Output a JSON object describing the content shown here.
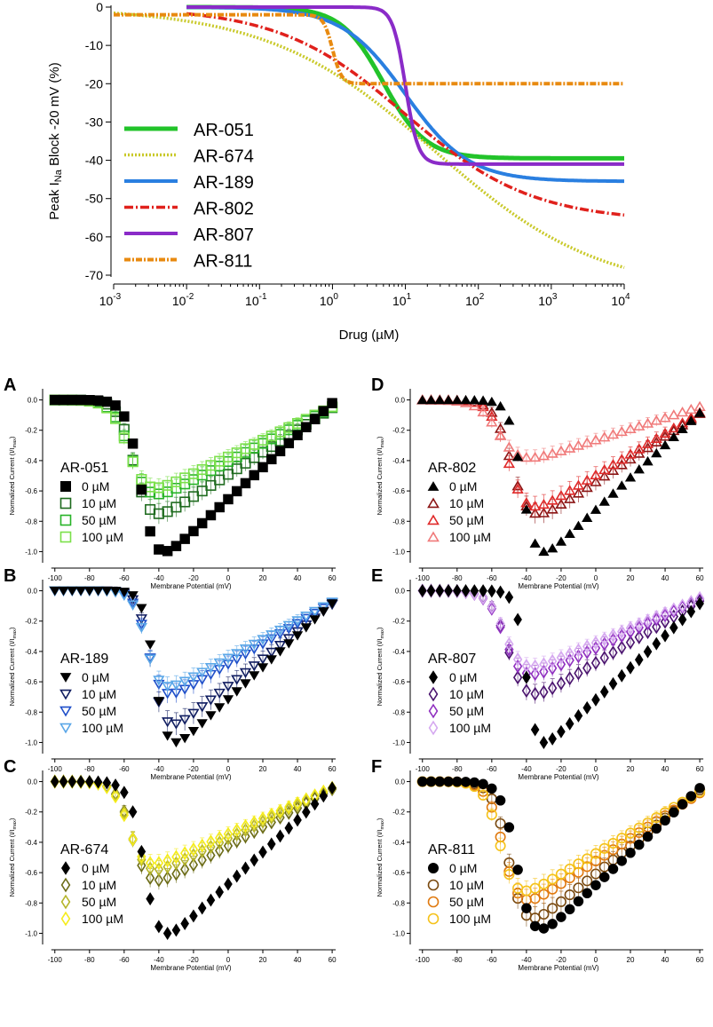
{
  "chart_data": [
    {
      "id": "top",
      "type": "line",
      "xscale": "log",
      "xlim": [
        0.001,
        10000
      ],
      "ylim": [
        -70,
        0
      ],
      "xlabel": "Drug (µM)",
      "ylabel_main": "Peak I",
      "ylabel_sub": "Na",
      "ylabel_rest": " Block -20 mV (%)",
      "x_ticks": [
        {
          "value": 0.001,
          "base": "10",
          "exp": "-3"
        },
        {
          "value": 0.01,
          "base": "10",
          "exp": "-2"
        },
        {
          "value": 0.1,
          "base": "10",
          "exp": "-1"
        },
        {
          "value": 1,
          "base": "10",
          "exp": "0"
        },
        {
          "value": 10,
          "base": "10",
          "exp": "1"
        },
        {
          "value": 100,
          "base": "10",
          "exp": "2"
        },
        {
          "value": 1000,
          "base": "10",
          "exp": "3"
        },
        {
          "value": 10000,
          "base": "10",
          "exp": "4"
        }
      ],
      "y_ticks": [
        {
          "value": 0,
          "label": "0"
        },
        {
          "value": -10,
          "label": "-10"
        },
        {
          "value": -20,
          "label": "-20"
        },
        {
          "value": -30,
          "label": "-30"
        },
        {
          "value": -40,
          "label": "-40"
        },
        {
          "value": -50,
          "label": "-50"
        },
        {
          "value": -60,
          "label": "-60"
        },
        {
          "value": -70,
          "label": "-70"
        }
      ],
      "legend_position": "bottom-left",
      "series": [
        {
          "name": "AR-051",
          "color": "#22c32a",
          "dash": "",
          "width": 5,
          "model": {
            "start": 0.01,
            "top": 0,
            "bottom": -39.5,
            "ic50": 5,
            "hill": 1.5
          }
        },
        {
          "name": "AR-674",
          "color": "#c9c92a",
          "dash": "2,2",
          "width": 3.5,
          "model": {
            "start": 0.001,
            "top": 0,
            "bottom": -75,
            "ic50": 25,
            "hill": 0.38
          }
        },
        {
          "name": "AR-189",
          "color": "#2a7fe0",
          "dash": "",
          "width": 4,
          "model": {
            "start": 0.01,
            "top": 0,
            "bottom": -45.5,
            "ic50": 10,
            "hill": 1.0
          }
        },
        {
          "name": "AR-802",
          "color": "#e0211c",
          "dash": "10,3,2,3",
          "width": 3.5,
          "model": {
            "start": 0.01,
            "top": 0,
            "bottom": -56,
            "ic50": 10,
            "hill": 0.5
          }
        },
        {
          "name": "AR-807",
          "color": "#8a2bc8",
          "dash": "",
          "width": 4,
          "model": {
            "start": 0.01,
            "top": 0,
            "bottom": -41,
            "ic50": 10,
            "hill": 5
          }
        },
        {
          "name": "AR-811",
          "color": "#e88a10",
          "dash": "7,2,2,2",
          "width": 4,
          "model": {
            "start": 0.001,
            "top": -2,
            "bottom": -20,
            "ic50": 1,
            "hill": 7
          }
        }
      ]
    },
    {
      "id": "A",
      "panel_label": "A",
      "type": "scatter",
      "drug": "AR-051",
      "marker": "square",
      "xlim": [
        -105,
        62
      ],
      "ylim": [
        -1.05,
        0.05
      ],
      "xlabel": "Membrane Potential (mV)",
      "ylabel": "Normalized Current (I/I",
      "ylabel_sub": "max",
      "ylabel_end": ")",
      "x_ticks": [
        -100,
        -80,
        -60,
        -40,
        -20,
        0,
        20,
        40,
        60
      ],
      "y_ticks": [
        {
          "value": 0,
          "label": "0.0"
        },
        {
          "value": -0.2,
          "label": "-0.2"
        },
        {
          "value": -0.4,
          "label": "-0.4"
        },
        {
          "value": -0.6,
          "label": "-0.6"
        },
        {
          "value": -0.8,
          "label": "-0.8"
        },
        {
          "value": -1.0,
          "label": "-1.0"
        }
      ],
      "series": [
        {
          "name": "0 µM",
          "color": "#000000",
          "filled": true,
          "errorbars": false,
          "model": {
            "vhalf": -50,
            "k": 4.2,
            "erev": 62,
            "peak": -1.0
          }
        },
        {
          "name": "10 µM",
          "color": "#1e6b1e",
          "filled": false,
          "errorbars": true,
          "model": {
            "vhalf": -54,
            "k": 4.5,
            "erev": 67,
            "peak": -0.75
          }
        },
        {
          "name": "50 µM",
          "color": "#27b327",
          "filled": false,
          "errorbars": true,
          "model": {
            "vhalf": -56,
            "k": 5.0,
            "erev": 68,
            "peak": -0.62
          }
        },
        {
          "name": "100 µM",
          "color": "#7be04a",
          "filled": false,
          "errorbars": true,
          "model": {
            "vhalf": -57,
            "k": 5.0,
            "erev": 68,
            "peak": -0.58
          }
        }
      ]
    },
    {
      "id": "B",
      "panel_label": "B",
      "type": "scatter",
      "drug": "AR-189",
      "marker": "triangle-down",
      "xlim": [
        -105,
        62
      ],
      "ylim": [
        -1.05,
        0.05
      ],
      "xlabel": "Membrane Potential (mV)",
      "ylabel": "Normalized Current (I/I",
      "ylabel_sub": "max",
      "ylabel_end": ")",
      "x_ticks": [
        -100,
        -80,
        -60,
        -40,
        -20,
        0,
        20,
        40,
        60
      ],
      "y_ticks": [
        {
          "value": 0,
          "label": "0.0"
        },
        {
          "value": -0.2,
          "label": "-0.2"
        },
        {
          "value": -0.4,
          "label": "-0.4"
        },
        {
          "value": -0.6,
          "label": "-0.6"
        },
        {
          "value": -0.8,
          "label": "-0.8"
        },
        {
          "value": -1.0,
          "label": "-1.0"
        }
      ],
      "series": [
        {
          "name": "0 µM",
          "color": "#000000",
          "filled": true,
          "errorbars": false,
          "model": {
            "vhalf": -42,
            "k": 3.5,
            "erev": 68,
            "peak": -1.0
          }
        },
        {
          "name": "10 µM",
          "color": "#101d60",
          "filled": false,
          "errorbars": true,
          "model": {
            "vhalf": -44,
            "k": 3.8,
            "erev": 70,
            "peak": -0.88
          }
        },
        {
          "name": "50 µM",
          "color": "#1f4fc9",
          "filled": false,
          "errorbars": true,
          "model": {
            "vhalf": -46,
            "k": 4.0,
            "erev": 72,
            "peak": -0.68
          }
        },
        {
          "name": "100 µM",
          "color": "#5aa7e8",
          "filled": false,
          "errorbars": true,
          "model": {
            "vhalf": -47,
            "k": 4.0,
            "erev": 72,
            "peak": -0.63
          }
        }
      ]
    },
    {
      "id": "C",
      "panel_label": "C",
      "type": "scatter",
      "drug": "AR-674",
      "marker": "diamond",
      "xlim": [
        -105,
        62
      ],
      "ylim": [
        -1.05,
        0.05
      ],
      "xlabel": "Membrane Potential (mV)",
      "ylabel": "Normalized Current (I/I",
      "ylabel_sub": "max",
      "ylabel_end": ")",
      "x_ticks": [
        -100,
        -80,
        -60,
        -40,
        -20,
        0,
        20,
        40,
        60
      ],
      "y_ticks": [
        {
          "value": 0,
          "label": "0.0"
        },
        {
          "value": -0.2,
          "label": "-0.2"
        },
        {
          "value": -0.4,
          "label": "-0.4"
        },
        {
          "value": -0.6,
          "label": "-0.6"
        },
        {
          "value": -0.8,
          "label": "-0.8"
        },
        {
          "value": -1.0,
          "label": "-1.0"
        }
      ],
      "series": [
        {
          "name": "0 µM",
          "color": "#000000",
          "filled": true,
          "errorbars": false,
          "model": {
            "vhalf": -48,
            "k": 4.2,
            "erev": 64,
            "peak": -1.0
          }
        },
        {
          "name": "10 µM",
          "color": "#6b6b16",
          "filled": false,
          "errorbars": true,
          "model": {
            "vhalf": -55,
            "k": 4.5,
            "erev": 68,
            "peak": -0.65
          }
        },
        {
          "name": "50 µM",
          "color": "#b5b52a",
          "filled": false,
          "errorbars": true,
          "model": {
            "vhalf": -56,
            "k": 4.5,
            "erev": 68,
            "peak": -0.58
          }
        },
        {
          "name": "100 µM",
          "color": "#f5ec1a",
          "filled": false,
          "errorbars": true,
          "model": {
            "vhalf": -57,
            "k": 4.5,
            "erev": 68,
            "peak": -0.54
          }
        }
      ]
    },
    {
      "id": "D",
      "panel_label": "D",
      "type": "scatter",
      "drug": "AR-802",
      "marker": "triangle-up",
      "xlim": [
        -105,
        62
      ],
      "ylim": [
        -1.05,
        0.05
      ],
      "xlabel": "Membrane Potential (mV)",
      "ylabel": "Normalized Current (I/I",
      "ylabel_sub": "max",
      "ylabel_end": ")",
      "x_ticks": [
        -100,
        -80,
        -60,
        -40,
        -20,
        0,
        20,
        40,
        60
      ],
      "y_ticks": [
        {
          "value": 0,
          "label": "0.0"
        },
        {
          "value": -0.2,
          "label": "-0.2"
        },
        {
          "value": -0.4,
          "label": "-0.4"
        },
        {
          "value": -0.6,
          "label": "-0.6"
        },
        {
          "value": -0.8,
          "label": "-0.8"
        },
        {
          "value": -1.0,
          "label": "-1.0"
        }
      ],
      "series": [
        {
          "name": "0 µM",
          "color": "#000000",
          "filled": true,
          "errorbars": false,
          "model": {
            "vhalf": -42,
            "k": 3.8,
            "erev": 68,
            "peak": -1.0
          }
        },
        {
          "name": "10 µM",
          "color": "#8b1515",
          "filled": false,
          "errorbars": true,
          "model": {
            "vhalf": -48,
            "k": 5.0,
            "erev": 72,
            "peak": -0.75
          }
        },
        {
          "name": "50 µM",
          "color": "#e02a2a",
          "filled": false,
          "errorbars": true,
          "model": {
            "vhalf": -50,
            "k": 5.0,
            "erev": 72,
            "peak": -0.7
          }
        },
        {
          "name": "100 µM",
          "color": "#f07a7a",
          "filled": false,
          "errorbars": true,
          "model": {
            "vhalf": -55,
            "k": 6.0,
            "erev": 72,
            "peak": -0.38
          }
        }
      ]
    },
    {
      "id": "E",
      "panel_label": "E",
      "type": "scatter",
      "drug": "AR-807",
      "marker": "diamond",
      "xlim": [
        -105,
        62
      ],
      "ylim": [
        -1.05,
        0.05
      ],
      "xlabel": "Membrane Potential (mV)",
      "ylabel": "Normalized Current (I/I",
      "ylabel_sub": "max",
      "ylabel_end": ")",
      "x_ticks": [
        -100,
        -80,
        -60,
        -40,
        -20,
        0,
        20,
        40,
        60
      ],
      "y_ticks": [
        {
          "value": 0,
          "label": "0.0"
        },
        {
          "value": -0.2,
          "label": "-0.2"
        },
        {
          "value": -0.4,
          "label": "-0.4"
        },
        {
          "value": -0.6,
          "label": "-0.6"
        },
        {
          "value": -0.8,
          "label": "-0.8"
        },
        {
          "value": -1.0,
          "label": "-1.0"
        }
      ],
      "series": [
        {
          "name": "0 µM",
          "color": "#000000",
          "filled": true,
          "errorbars": false,
          "model": {
            "vhalf": -40,
            "k": 3.0,
            "erev": 68,
            "peak": -1.0
          }
        },
        {
          "name": "10 µM",
          "color": "#4a136e",
          "filled": false,
          "errorbars": true,
          "model": {
            "vhalf": -50,
            "k": 5.0,
            "erev": 70,
            "peak": -0.68
          }
        },
        {
          "name": "50 µM",
          "color": "#9030c0",
          "filled": false,
          "errorbars": true,
          "model": {
            "vhalf": -52,
            "k": 5.0,
            "erev": 70,
            "peak": -0.55
          }
        },
        {
          "name": "100 µM",
          "color": "#d5a8f0",
          "filled": false,
          "errorbars": true,
          "model": {
            "vhalf": -52,
            "k": 5.0,
            "erev": 70,
            "peak": -0.5
          }
        }
      ]
    },
    {
      "id": "F",
      "panel_label": "F",
      "type": "scatter",
      "drug": "AR-811",
      "marker": "circle",
      "xlim": [
        -105,
        62
      ],
      "ylim": [
        -1.05,
        0.05
      ],
      "xlabel": "Membrane Potential (mV)",
      "ylabel": "Normalized Current (I/I",
      "ylabel_sub": "max",
      "ylabel_end": ")",
      "x_ticks": [
        -100,
        -80,
        -60,
        -40,
        -20,
        0,
        20,
        40,
        60
      ],
      "y_ticks": [
        {
          "value": 0,
          "label": "0.0"
        },
        {
          "value": -0.2,
          "label": "-0.2"
        },
        {
          "value": -0.4,
          "label": "-0.4"
        },
        {
          "value": -0.6,
          "label": "-0.6"
        },
        {
          "value": -0.8,
          "label": "-0.8"
        },
        {
          "value": -1.0,
          "label": "-1.0"
        }
      ],
      "series": [
        {
          "name": "0 µM",
          "color": "#000000",
          "filled": true,
          "errorbars": false,
          "model": {
            "vhalf": -45,
            "k": 4.5,
            "erev": 64,
            "peak": -0.97
          }
        },
        {
          "name": "10 µM",
          "color": "#7a4a10",
          "filled": false,
          "errorbars": true,
          "model": {
            "vhalf": -50,
            "k": 4.5,
            "erev": 66,
            "peak": -0.9
          }
        },
        {
          "name": "50 µM",
          "color": "#e07a10",
          "filled": false,
          "errorbars": true,
          "model": {
            "vhalf": -53,
            "k": 4.5,
            "erev": 70,
            "peak": -0.78
          }
        },
        {
          "name": "100 µM",
          "color": "#f5c21a",
          "filled": false,
          "errorbars": true,
          "model": {
            "vhalf": -55,
            "k": 4.5,
            "erev": 70,
            "peak": -0.72
          }
        }
      ]
    }
  ]
}
